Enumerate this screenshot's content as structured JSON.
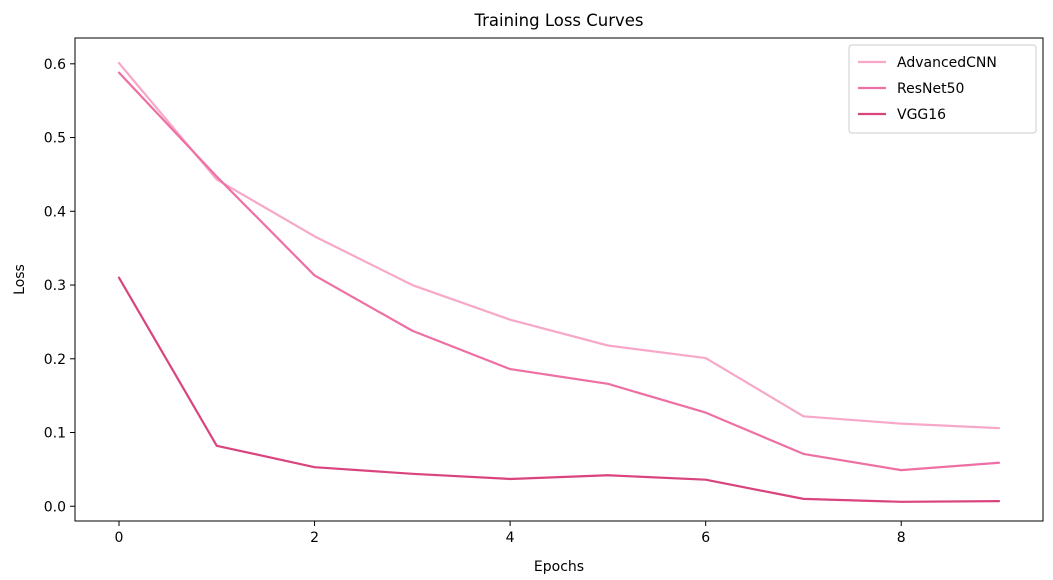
{
  "chart_data": {
    "type": "line",
    "title": "Training Loss Curves",
    "xlabel": "Epochs",
    "ylabel": "Loss",
    "x": [
      0,
      1,
      2,
      3,
      4,
      5,
      6,
      7,
      8,
      9
    ],
    "xlim": [
      -0.45,
      9.45
    ],
    "ylim": [
      -0.02,
      0.635
    ],
    "xticks": [
      0,
      2,
      4,
      6,
      8
    ],
    "xtick_labels": [
      "0",
      "2",
      "4",
      "6",
      "8"
    ],
    "yticks": [
      0.0,
      0.1,
      0.2,
      0.3,
      0.4,
      0.5,
      0.6
    ],
    "ytick_labels": [
      "0.0",
      "0.1",
      "0.2",
      "0.3",
      "0.4",
      "0.5",
      "0.6"
    ],
    "grid": false,
    "legend_position": "top-right",
    "series": [
      {
        "name": "AdvancedCNN",
        "color": "#f7a8c8",
        "values": [
          0.601,
          0.443,
          0.366,
          0.3,
          0.253,
          0.218,
          0.201,
          0.122,
          0.112,
          0.106
        ]
      },
      {
        "name": "ResNet50",
        "color": "#ee6fa3",
        "values": [
          0.588,
          0.447,
          0.313,
          0.238,
          0.186,
          0.166,
          0.127,
          0.071,
          0.049,
          0.059
        ]
      },
      {
        "name": "VGG16",
        "color": "#d9447e",
        "values": [
          0.31,
          0.082,
          0.053,
          0.044,
          0.037,
          0.042,
          0.036,
          0.01,
          0.006,
          0.007
        ]
      }
    ]
  }
}
